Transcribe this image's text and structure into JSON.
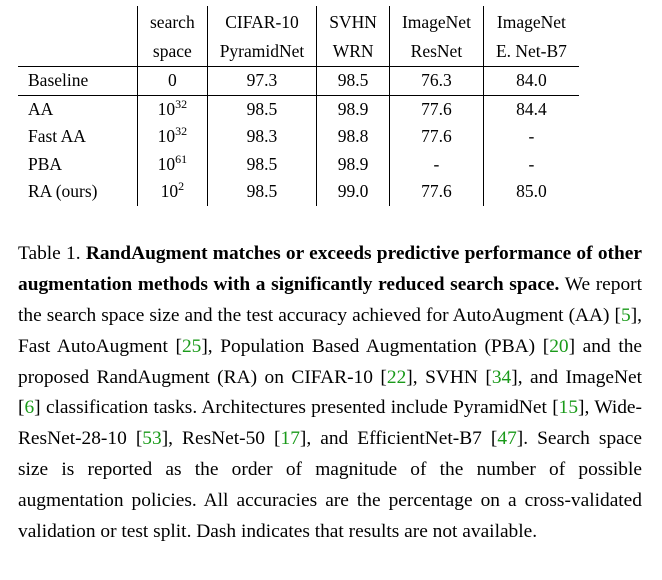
{
  "table": {
    "header_row1": [
      "",
      "search",
      "CIFAR-10",
      "SVHN",
      "ImageNet",
      "ImageNet"
    ],
    "header_row2": [
      "",
      "space",
      "PyramidNet",
      "WRN",
      "ResNet",
      "E. Net-B7"
    ],
    "rows": [
      {
        "method": "Baseline",
        "space_base": "0",
        "space_exp": "",
        "cifar": "97.3",
        "svhn": "98.5",
        "resnet": "76.3",
        "enet": "84.0"
      },
      {
        "method": "AA",
        "space_base": "10",
        "space_exp": "32",
        "cifar": "98.5",
        "svhn": "98.9",
        "resnet": "77.6",
        "enet": "84.4"
      },
      {
        "method": "Fast AA",
        "space_base": "10",
        "space_exp": "32",
        "cifar": "98.3",
        "svhn": "98.8",
        "resnet": "77.6",
        "enet": "-"
      },
      {
        "method": "PBA",
        "space_base": "10",
        "space_exp": "61",
        "cifar": "98.5",
        "svhn": "98.9",
        "resnet": "-",
        "enet": "-"
      },
      {
        "method": "RA (ours)",
        "space_base": "10",
        "space_exp": "2",
        "cifar": "98.5",
        "svhn": "99.0",
        "resnet": "77.6",
        "enet": "85.0"
      }
    ]
  },
  "caption": {
    "label": "Table 1. ",
    "bold": "RandAugment matches or exceeds predictive performance of other augmentation methods with a significantly reduced search space.",
    "t1": " We report the search space size and the test accuracy achieved for AutoAugment (AA) [",
    "c1": "5",
    "t2": "], Fast AutoAugment [",
    "c2": "25",
    "t3": "], Population Based Augmentation (PBA) [",
    "c3": "20",
    "t4": "] and the proposed RandAugment (RA) on CIFAR-10 [",
    "c4": "22",
    "t5": "], SVHN [",
    "c5": "34",
    "t6": "], and ImageNet [",
    "c6": "6",
    "t7": "] classification tasks. Architectures presented include PyramidNet [",
    "c7": "15",
    "t8": "], Wide-ResNet-28-10 [",
    "c8": "53",
    "t9": "], ResNet-50 [",
    "c9": "17",
    "t10": "], and EfficientNet-B7 [",
    "c10": "47",
    "t11": "]. Search space size is reported as the order of magnitude of the number of possible augmentation policies. All accuracies are the percentage on a cross-validated validation or test split. Dash indicates that results are not available."
  }
}
